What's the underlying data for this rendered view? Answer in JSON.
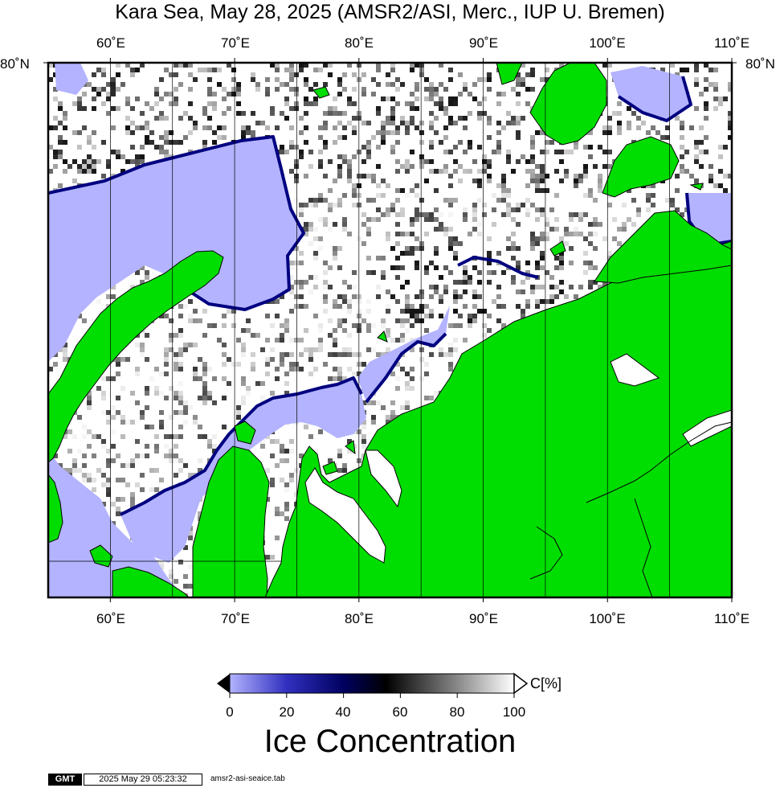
{
  "title": "Kara Sea, May 28, 2025 (AMSR2/ASI, Merc., IUP U. Bremen)",
  "axes": {
    "top_lon_labels": [
      "60˚E",
      "70˚E",
      "80˚E",
      "90˚E",
      "100˚E",
      "110˚E"
    ],
    "bottom_lon_labels": [
      "60˚E",
      "70˚E",
      "80˚E",
      "90˚E",
      "100˚E",
      "110˚E"
    ],
    "lat_label_left": "80˚N",
    "lat_label_right": "80˚N"
  },
  "map": {
    "region": "Kara Sea",
    "projection": "Mercator",
    "colors": {
      "land": "#00dd00",
      "open_water": "#b3b3ff",
      "ice": "#ffffff",
      "ice_edge": "#000080"
    }
  },
  "colorbar": {
    "ticks": [
      "0",
      "20",
      "40",
      "60",
      "80",
      "100"
    ],
    "unit": "C[%]",
    "title": "Ice Concentration",
    "color_stops": [
      "#b3b3ff",
      "#3030c0",
      "#000060",
      "#000000",
      "#888888",
      "#ffffff"
    ]
  },
  "footer": {
    "logo": "GMT",
    "timestamp": "2025 May 29 05:23:32",
    "file": "amsr2-asi-seaice.tab"
  }
}
